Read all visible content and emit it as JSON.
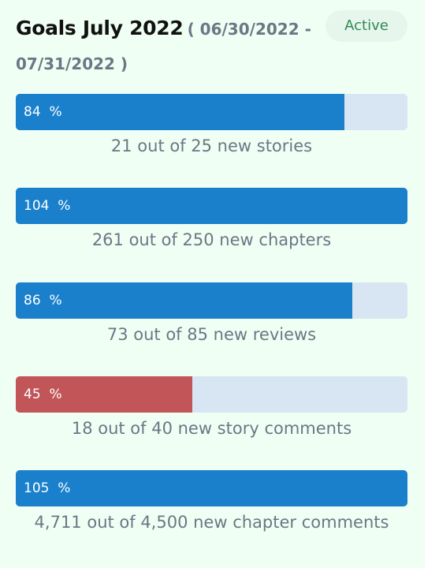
{
  "header": {
    "title": "Goals July 2022",
    "date_range": "( 06/30/2022 - 07/31/2022 )",
    "status_badge": "Active"
  },
  "colors": {
    "on_track": "#1a80cc",
    "behind": "#c25558",
    "track": "#d8e6f3",
    "badge_bg": "#e6f6ec",
    "badge_text": "#2f8a55"
  },
  "goals": [
    {
      "percent_label": "84  %",
      "progress_fraction": 0.84,
      "status": "on_track",
      "caption": "21 out of 25 new stories"
    },
    {
      "percent_label": "104  %",
      "progress_fraction": 1.0,
      "status": "on_track",
      "caption": "261 out of 250 new chapters"
    },
    {
      "percent_label": "86  %",
      "progress_fraction": 0.86,
      "status": "on_track",
      "caption": "73 out of 85 new reviews"
    },
    {
      "percent_label": "45  %",
      "progress_fraction": 0.45,
      "status": "behind",
      "caption": "18 out of 40 new story comments"
    },
    {
      "percent_label": "105  %",
      "progress_fraction": 1.0,
      "status": "on_track",
      "caption": "4,711 out of 4,500 new chapter comments"
    }
  ]
}
